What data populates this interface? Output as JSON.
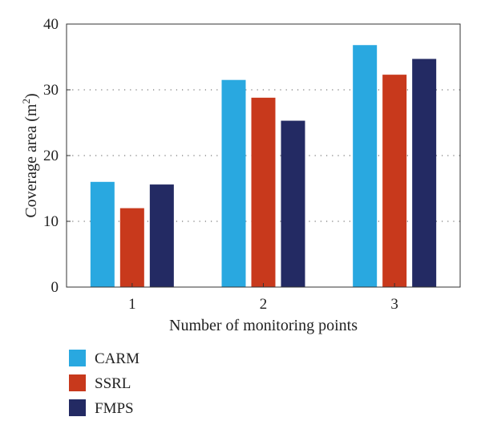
{
  "chart_data": {
    "type": "bar",
    "xlabel": "Number of monitoring points",
    "ylabel": "Coverage area (m",
    "ylabel_sup": "2",
    "ylabel_close": ")",
    "ylim": [
      0,
      40
    ],
    "yticks": [
      0,
      10,
      20,
      30,
      40
    ],
    "categories": [
      "1",
      "2",
      "3"
    ],
    "grid": "horizontal dotted",
    "legend_position": "bottom-left",
    "series": [
      {
        "name": "CARM",
        "color": "#29a8e0",
        "values": [
          16,
          31.5,
          36.8
        ]
      },
      {
        "name": "SSRL",
        "color": "#c8391c",
        "values": [
          12,
          28.8,
          32.3
        ]
      },
      {
        "name": "FMPS",
        "color": "#232a63",
        "values": [
          15.6,
          25.3,
          34.7
        ]
      }
    ]
  }
}
